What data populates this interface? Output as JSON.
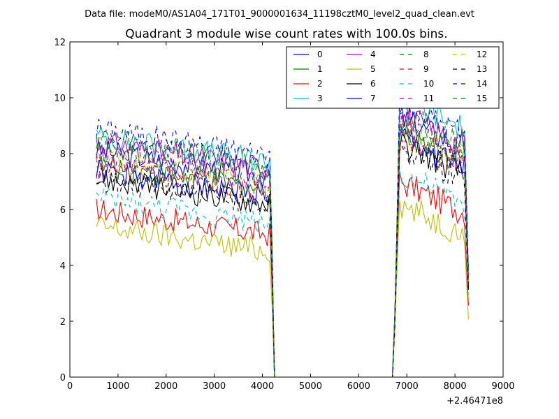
{
  "figure": {
    "suptitle": "Data file: modeM0/AS1A04_171T01_9000001634_11198cztM0_level2_quad_clean.evt"
  },
  "chart_data": {
    "type": "line",
    "title": "Quadrant 3 module wise count rates with 100.0s bins.",
    "xlabel": "",
    "ylabel": "",
    "x_offset_label": "+2.46471e8",
    "xlim": [
      0,
      9000
    ],
    "ylim": [
      0,
      12
    ],
    "xticks": [
      0,
      1000,
      2000,
      3000,
      4000,
      5000,
      6000,
      7000,
      8000,
      9000
    ],
    "yticks": [
      0,
      2,
      4,
      6,
      8,
      10,
      12
    ],
    "x_tick_labels": [
      "0",
      "1000",
      "2000",
      "3000",
      "4000",
      "5000",
      "6000",
      "7000",
      "8000",
      "9000"
    ],
    "y_tick_labels": [
      "0",
      "2",
      "4",
      "6",
      "8",
      "10",
      "12"
    ],
    "grid": false,
    "legend": {
      "placement": "top-right",
      "columns": 4
    },
    "segments": [
      {
        "x_start": 550,
        "x_end": 4150,
        "x_step": 50
      },
      {
        "x_start": 6850,
        "x_end": 8200,
        "x_step": 50
      }
    ],
    "gap_x": [
      4200,
      4250,
      6700,
      6750,
      6800,
      8250,
      8280
    ],
    "series": [
      {
        "name": "0",
        "color": "#0000ff",
        "style": "solid",
        "segment_levels": [
          7.6,
          8.5
        ],
        "end_value": 4.5
      },
      {
        "name": "1",
        "color": "#008000",
        "style": "solid",
        "segment_levels": [
          7.1,
          8.0
        ],
        "end_value": 4.2
      },
      {
        "name": "2",
        "color": "#ff0000",
        "style": "solid",
        "segment_levels": [
          5.5,
          6.2
        ],
        "end_value": 3.2
      },
      {
        "name": "3",
        "color": "#00bfbf",
        "style": "solid",
        "segment_levels": [
          8.1,
          9.2
        ],
        "end_value": 4.8
      },
      {
        "name": "4",
        "color": "#bf00bf",
        "style": "solid",
        "segment_levels": [
          7.9,
          8.6
        ],
        "end_value": 4.4
      },
      {
        "name": "5",
        "color": "#bfbf00",
        "style": "solid",
        "segment_levels": [
          4.9,
          5.4
        ],
        "end_value": 2.6
      },
      {
        "name": "6",
        "color": "#000000",
        "style": "solid",
        "segment_levels": [
          6.6,
          7.6
        ],
        "end_value": 4.0
      },
      {
        "name": "7",
        "color": "#0000ff",
        "style": "solid",
        "segment_levels": [
          6.9,
          7.8
        ],
        "end_value": 3.9
      },
      {
        "name": "8",
        "color": "#008000",
        "style": "dashed",
        "segment_levels": [
          8.1,
          8.7
        ],
        "end_value": 4.6
      },
      {
        "name": "9",
        "color": "#ff0000",
        "style": "dashed",
        "segment_levels": [
          7.0,
          7.9
        ],
        "end_value": 4.3
      },
      {
        "name": "10",
        "color": "#00bfbf",
        "style": "dashed",
        "segment_levels": [
          5.9,
          6.5
        ],
        "end_value": 3.5
      },
      {
        "name": "11",
        "color": "#bf00bf",
        "style": "dashed",
        "segment_levels": [
          7.4,
          8.2
        ],
        "end_value": 4.4
      },
      {
        "name": "12",
        "color": "#bfbf00",
        "style": "dashed",
        "segment_levels": [
          7.3,
          8.1
        ],
        "end_value": 4.1
      },
      {
        "name": "13",
        "color": "#000000",
        "style": "dashed",
        "segment_levels": [
          6.6,
          7.4
        ],
        "end_value": 3.8
      },
      {
        "name": "14",
        "color": "#0000ff",
        "style": "dashed",
        "segment_levels": [
          8.4,
          9.0
        ],
        "end_value": 4.7
      },
      {
        "name": "15",
        "color": "#008000",
        "style": "dashed",
        "segment_levels": [
          7.7,
          8.3
        ],
        "end_value": 4.5
      }
    ]
  }
}
